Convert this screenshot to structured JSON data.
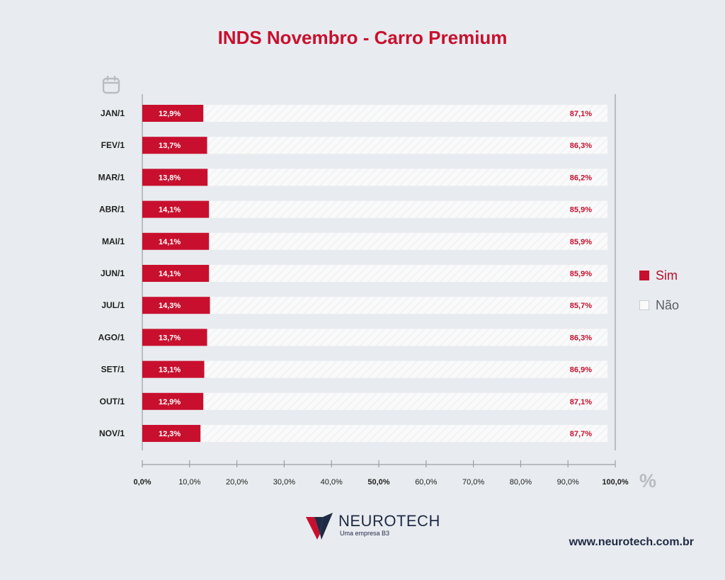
{
  "header": {
    "title": "INDS Novembro - Carro Premium"
  },
  "chart_data": {
    "type": "bar",
    "orientation": "horizontal",
    "stacked": true,
    "title": "INDS Novembro - Carro Premium",
    "categories": [
      "JAN/1",
      "FEV/1",
      "MAR/1",
      "ABR/1",
      "MAI/1",
      "JUN/1",
      "JUL/1",
      "AGO/1",
      "SET/1",
      "OUT/1",
      "NOV/1"
    ],
    "series": [
      {
        "name": "Sim",
        "color": "#c8102e",
        "values": [
          12.9,
          13.7,
          13.8,
          14.1,
          14.1,
          14.1,
          14.3,
          13.7,
          13.1,
          12.9,
          12.3
        ],
        "labels": [
          "12,9%",
          "13,7%",
          "13,8%",
          "14,1%",
          "14,1%",
          "14,1%",
          "14,3%",
          "13,7%",
          "13,1%",
          "12,9%",
          "12,3%"
        ]
      },
      {
        "name": "Não",
        "color": "#fafafa",
        "values": [
          87.1,
          86.3,
          86.2,
          85.9,
          85.9,
          85.9,
          85.7,
          86.3,
          86.9,
          87.1,
          87.7
        ],
        "labels": [
          "87,1%",
          "86,3%",
          "86,2%",
          "85,9%",
          "85,9%",
          "85,9%",
          "85,7%",
          "86,3%",
          "86,9%",
          "87,1%",
          "87,7%"
        ]
      }
    ],
    "xlim": [
      0,
      100
    ],
    "xticks": [
      0,
      10,
      20,
      30,
      40,
      50,
      60,
      70,
      80,
      90,
      100
    ],
    "xtick_labels": [
      "0,0%",
      "10,0%",
      "20,0%",
      "30,0%",
      "40,0%",
      "50,0%",
      "60,0%",
      "70,0%",
      "80,0%",
      "90,0%",
      "100,0%"
    ],
    "bold_xticks": [
      0,
      50,
      100
    ],
    "unit_symbol": "%",
    "legend_position": "right"
  },
  "legend": {
    "sim": "Sim",
    "nao": "Não"
  },
  "icons": {
    "calendar": "calendar-icon",
    "percent": "%"
  },
  "footer": {
    "brand": "NEUROTECH",
    "tagline": "Uma empresa B3",
    "website": "www.neurotech.com.br"
  }
}
